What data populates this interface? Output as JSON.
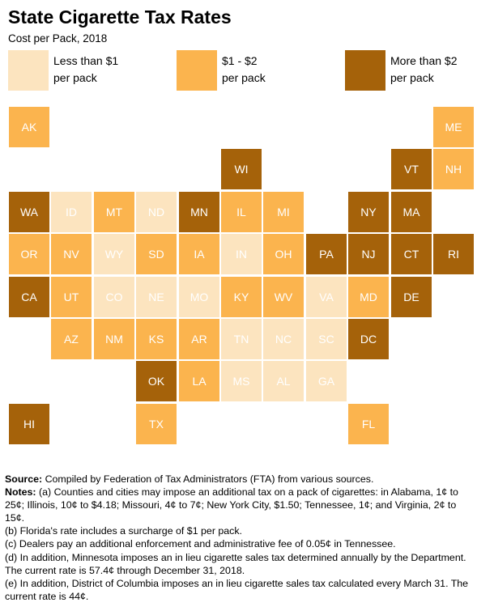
{
  "title": "State Cigarette Tax Rates",
  "subtitle": "Cost per Pack, 2018",
  "legend": [
    {
      "key": "low",
      "label": "Less than $1\nper pack",
      "color": "#fce4bf"
    },
    {
      "key": "mid",
      "label": "$1 - $2\nper pack",
      "color": "#fbb44e"
    },
    {
      "key": "high",
      "label": "More than $2\nper pack",
      "color": "#a5620a"
    }
  ],
  "colors": {
    "low": "#fce4bf",
    "mid": "#fbb44e",
    "high": "#a5620a"
  },
  "states": [
    {
      "abbr": "AK",
      "category": "mid"
    },
    {
      "abbr": "ME",
      "category": "mid"
    },
    {
      "abbr": "WI",
      "category": "high"
    },
    {
      "abbr": "VT",
      "category": "high"
    },
    {
      "abbr": "NH",
      "category": "mid"
    },
    {
      "abbr": "WA",
      "category": "high"
    },
    {
      "abbr": "ID",
      "category": "low"
    },
    {
      "abbr": "MT",
      "category": "mid"
    },
    {
      "abbr": "ND",
      "category": "low"
    },
    {
      "abbr": "MN",
      "category": "high"
    },
    {
      "abbr": "IL",
      "category": "mid"
    },
    {
      "abbr": "MI",
      "category": "mid"
    },
    {
      "abbr": "NY",
      "category": "high"
    },
    {
      "abbr": "MA",
      "category": "high"
    },
    {
      "abbr": "OR",
      "category": "mid"
    },
    {
      "abbr": "NV",
      "category": "mid"
    },
    {
      "abbr": "WY",
      "category": "low"
    },
    {
      "abbr": "SD",
      "category": "mid"
    },
    {
      "abbr": "IA",
      "category": "mid"
    },
    {
      "abbr": "IN",
      "category": "low"
    },
    {
      "abbr": "OH",
      "category": "mid"
    },
    {
      "abbr": "PA",
      "category": "high"
    },
    {
      "abbr": "NJ",
      "category": "high"
    },
    {
      "abbr": "CT",
      "category": "high"
    },
    {
      "abbr": "RI",
      "category": "high"
    },
    {
      "abbr": "CA",
      "category": "high"
    },
    {
      "abbr": "UT",
      "category": "mid"
    },
    {
      "abbr": "CO",
      "category": "low"
    },
    {
      "abbr": "NE",
      "category": "low"
    },
    {
      "abbr": "MO",
      "category": "low"
    },
    {
      "abbr": "KY",
      "category": "mid"
    },
    {
      "abbr": "WV",
      "category": "mid"
    },
    {
      "abbr": "VA",
      "category": "low"
    },
    {
      "abbr": "MD",
      "category": "mid"
    },
    {
      "abbr": "DE",
      "category": "high"
    },
    {
      "abbr": "AZ",
      "category": "mid"
    },
    {
      "abbr": "NM",
      "category": "mid"
    },
    {
      "abbr": "KS",
      "category": "mid"
    },
    {
      "abbr": "AR",
      "category": "mid"
    },
    {
      "abbr": "TN",
      "category": "low"
    },
    {
      "abbr": "NC",
      "category": "low"
    },
    {
      "abbr": "SC",
      "category": "low"
    },
    {
      "abbr": "DC",
      "category": "high"
    },
    {
      "abbr": "OK",
      "category": "high"
    },
    {
      "abbr": "LA",
      "category": "mid"
    },
    {
      "abbr": "MS",
      "category": "low"
    },
    {
      "abbr": "AL",
      "category": "low"
    },
    {
      "abbr": "GA",
      "category": "low"
    },
    {
      "abbr": "HI",
      "category": "high"
    },
    {
      "abbr": "TX",
      "category": "mid"
    },
    {
      "abbr": "FL",
      "category": "mid"
    }
  ],
  "notes": {
    "source_label": "Source:",
    "source_text": " Compiled by Federation of Tax Administrators (FTA) from various sources.",
    "notes_label": "Notes:",
    "note_a": " (a) Counties and cities may impose an additional tax on a pack of cigarettes:  in Alabama, 1¢ to 25¢; Illinois, 10¢ to $4.18; Missouri, 4¢ to 7¢; New York City, $1.50; Tennessee, 1¢; and Virginia, 2¢ to 15¢.",
    "note_b": "(b) Florida's rate includes a surcharge of $1 per pack.",
    "note_c": "(c) Dealers pay an additional enforcement and administrative fee of 0.05¢ in Tennessee.",
    "note_d": "(d) In addition, Minnesota imposes an in lieu cigarette sales tax determined annually by the Department. The current rate is 57.4¢ through December 31, 2018.",
    "note_e": "(e) In addition, District of Columbia imposes an in lieu cigarette sales tax calculated every March 31. The current rate is 44¢."
  }
}
